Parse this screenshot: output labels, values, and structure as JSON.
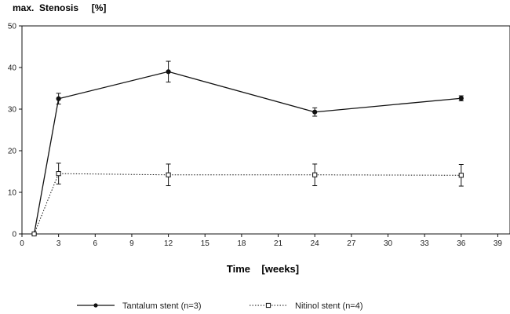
{
  "chart_data": {
    "type": "line",
    "title": "",
    "ylabel": "max.  Stenosis     [%]",
    "xlabel": "Time    [weeks]",
    "xlim": [
      0,
      40
    ],
    "ylim": [
      0,
      50
    ],
    "x_ticks": [
      0,
      3,
      6,
      9,
      12,
      15,
      18,
      21,
      24,
      27,
      30,
      33,
      36,
      39
    ],
    "y_ticks": [
      0,
      10,
      20,
      30,
      40,
      50
    ],
    "grid": false,
    "legend_position": "bottom",
    "series": [
      {
        "name": "Tantalum stent (n=3)",
        "line_style": "solid",
        "marker": "filled-circle",
        "color": "#111111",
        "points": [
          {
            "x": 1,
            "y": 0,
            "err": 0
          },
          {
            "x": 3,
            "y": 32.5,
            "err": 1.3
          },
          {
            "x": 12,
            "y": 39,
            "err": 2.5
          },
          {
            "x": 24,
            "y": 29.3,
            "err": 1.0
          },
          {
            "x": 36,
            "y": 32.6,
            "err": 0.6
          }
        ]
      },
      {
        "name": "Nitinol stent (n=4)",
        "line_style": "dotted",
        "marker": "open-square",
        "color": "#111111",
        "points": [
          {
            "x": 1,
            "y": 0,
            "err": 0
          },
          {
            "x": 3,
            "y": 14.5,
            "err": 2.5
          },
          {
            "x": 12,
            "y": 14.2,
            "err": 2.6
          },
          {
            "x": 24,
            "y": 14.2,
            "err": 2.6
          },
          {
            "x": 36,
            "y": 14.1,
            "err": 2.6
          }
        ]
      }
    ]
  }
}
